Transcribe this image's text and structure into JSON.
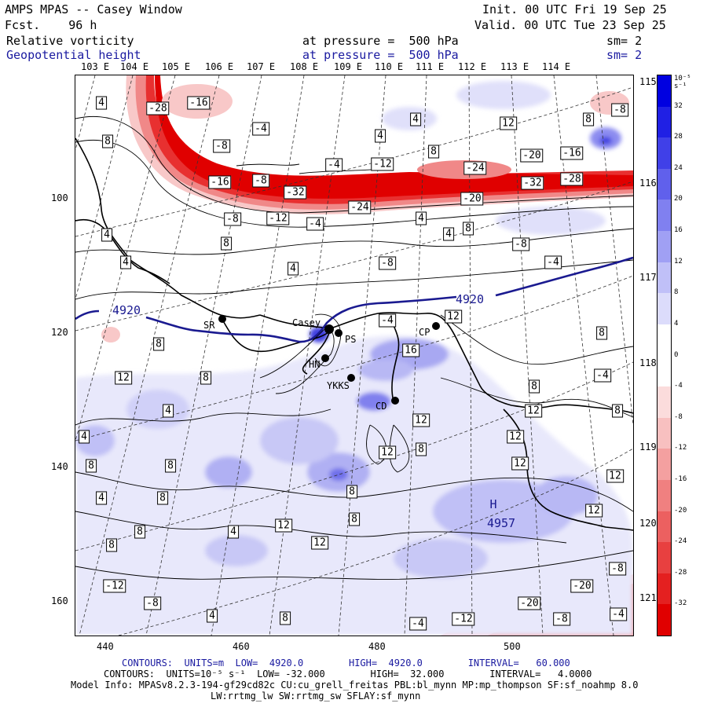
{
  "header": {
    "title": "AMPS MPAS -- Casey Window",
    "forecast": "Fcst.    96 h",
    "init": "Init. 00 UTC Fri 19 Sep 25",
    "valid": "Valid. 00 UTC Tue 23 Sep 25",
    "field1": {
      "name": "Relative vorticity",
      "level": "at pressure =  500 hPa",
      "smooth": "sm= 2"
    },
    "field2": {
      "name": "Geopotential height",
      "level": "at pressure =  500 hPa",
      "smooth": "sm= 2"
    }
  },
  "map": {
    "top_lon_labels": [
      "103 E",
      "104 E",
      "105 E",
      "106 E",
      "107 E",
      "108 E",
      "109 E",
      "110 E",
      "111 E",
      "112 E",
      "113 E",
      "114 E"
    ],
    "right_lon_labels": [
      "115 E",
      "116 E",
      "117 E",
      "118 E",
      "119 E",
      "120 E",
      "121 E"
    ],
    "x_ticks": [
      "440",
      "460",
      "480",
      "500"
    ],
    "y_ticks": [
      "100",
      "120",
      "140",
      "160"
    ],
    "stations": [
      {
        "name": "SR"
      },
      {
        "name": "Casey"
      },
      {
        "name": "PS"
      },
      {
        "name": "HN"
      },
      {
        "name": "YKKS"
      },
      {
        "name": "CD"
      },
      {
        "name": "CP"
      }
    ],
    "height_labels": [
      {
        "text": "4920",
        "x": 160,
        "y": 394
      },
      {
        "text": "4920",
        "x": 597,
        "y": 380
      },
      {
        "text": "4957",
        "x": 637,
        "y": 665
      },
      {
        "text": "H",
        "x": 627,
        "y": 641
      }
    ],
    "vort_labels": [
      {
        "text": "-28",
        "x": 200,
        "y": 137
      },
      {
        "text": "-16",
        "x": 252,
        "y": 130
      },
      {
        "text": "4",
        "x": 128,
        "y": 130
      },
      {
        "text": "-4",
        "x": 331,
        "y": 163
      },
      {
        "text": "8",
        "x": 136,
        "y": 179
      },
      {
        "text": "-8",
        "x": 281,
        "y": 185
      },
      {
        "text": "4",
        "x": 483,
        "y": 172
      },
      {
        "text": "4",
        "x": 528,
        "y": 151
      },
      {
        "text": "12",
        "x": 646,
        "y": 156
      },
      {
        "text": "8",
        "x": 748,
        "y": 151
      },
      {
        "text": "-8",
        "x": 788,
        "y": 139
      },
      {
        "text": "8",
        "x": 551,
        "y": 192
      },
      {
        "text": "-4",
        "x": 424,
        "y": 209
      },
      {
        "text": "-12",
        "x": 486,
        "y": 208
      },
      {
        "text": "-24",
        "x": 604,
        "y": 213
      },
      {
        "text": "-20",
        "x": 676,
        "y": 197
      },
      {
        "text": "-16",
        "x": 727,
        "y": 194
      },
      {
        "text": "-16",
        "x": 279,
        "y": 231
      },
      {
        "text": "-8",
        "x": 331,
        "y": 229
      },
      {
        "text": "-32",
        "x": 375,
        "y": 244
      },
      {
        "text": "-32",
        "x": 677,
        "y": 232
      },
      {
        "text": "-28",
        "x": 727,
        "y": 227
      },
      {
        "text": "-20",
        "x": 600,
        "y": 252
      },
      {
        "text": "-24",
        "x": 457,
        "y": 263
      },
      {
        "text": "4",
        "x": 535,
        "y": 277
      },
      {
        "text": "-8",
        "x": 295,
        "y": 278
      },
      {
        "text": "-12",
        "x": 353,
        "y": 277
      },
      {
        "text": "-4",
        "x": 400,
        "y": 284
      },
      {
        "text": "4",
        "x": 135,
        "y": 298
      },
      {
        "text": "8",
        "x": 287,
        "y": 309
      },
      {
        "text": "4",
        "x": 570,
        "y": 297
      },
      {
        "text": "8",
        "x": 595,
        "y": 290
      },
      {
        "text": "-8",
        "x": 662,
        "y": 310
      },
      {
        "text": "4",
        "x": 159,
        "y": 333
      },
      {
        "text": "4",
        "x": 372,
        "y": 341
      },
      {
        "text": "-8",
        "x": 492,
        "y": 334
      },
      {
        "text": "-4",
        "x": 703,
        "y": 333
      },
      {
        "text": "-4",
        "x": 492,
        "y": 407
      },
      {
        "text": "12",
        "x": 576,
        "y": 402
      },
      {
        "text": "8",
        "x": 201,
        "y": 437
      },
      {
        "text": "8",
        "x": 765,
        "y": 423
      },
      {
        "text": "16",
        "x": 522,
        "y": 445
      },
      {
        "text": "12",
        "x": 156,
        "y": 480
      },
      {
        "text": "8",
        "x": 261,
        "y": 480
      },
      {
        "text": "-4",
        "x": 766,
        "y": 477
      },
      {
        "text": "8",
        "x": 679,
        "y": 491
      },
      {
        "text": "4",
        "x": 213,
        "y": 522
      },
      {
        "text": "12",
        "x": 678,
        "y": 522
      },
      {
        "text": "8",
        "x": 785,
        "y": 522
      },
      {
        "text": "12",
        "x": 535,
        "y": 534
      },
      {
        "text": "4",
        "x": 106,
        "y": 555
      },
      {
        "text": "12",
        "x": 655,
        "y": 555
      },
      {
        "text": "12",
        "x": 492,
        "y": 575
      },
      {
        "text": "8",
        "x": 535,
        "y": 571
      },
      {
        "text": "8",
        "x": 115,
        "y": 592
      },
      {
        "text": "8",
        "x": 216,
        "y": 592
      },
      {
        "text": "12",
        "x": 661,
        "y": 589
      },
      {
        "text": "12",
        "x": 782,
        "y": 605
      },
      {
        "text": "4",
        "x": 128,
        "y": 633
      },
      {
        "text": "8",
        "x": 206,
        "y": 633
      },
      {
        "text": "8",
        "x": 447,
        "y": 625
      },
      {
        "text": "8",
        "x": 450,
        "y": 660
      },
      {
        "text": "12",
        "x": 360,
        "y": 668
      },
      {
        "text": "8",
        "x": 177,
        "y": 676
      },
      {
        "text": "4",
        "x": 296,
        "y": 676
      },
      {
        "text": "12",
        "x": 755,
        "y": 649
      },
      {
        "text": "8",
        "x": 141,
        "y": 693
      },
      {
        "text": "12",
        "x": 406,
        "y": 690
      },
      {
        "text": "-8",
        "x": 785,
        "y": 723
      },
      {
        "text": "-12",
        "x": 145,
        "y": 745
      },
      {
        "text": "-20",
        "x": 740,
        "y": 745
      },
      {
        "text": "-8",
        "x": 193,
        "y": 767
      },
      {
        "text": "-20",
        "x": 673,
        "y": 767
      },
      {
        "text": "4",
        "x": 269,
        "y": 783
      },
      {
        "text": "8",
        "x": 362,
        "y": 786
      },
      {
        "text": "-4",
        "x": 531,
        "y": 793
      },
      {
        "text": "-12",
        "x": 589,
        "y": 787
      },
      {
        "text": "-8",
        "x": 714,
        "y": 787
      },
      {
        "text": "-4",
        "x": 786,
        "y": 781
      }
    ]
  },
  "colorbar": {
    "units": "10⁻⁵ s⁻¹",
    "labels": [
      "32",
      "28",
      "24",
      "20",
      "16",
      "12",
      "8",
      "4",
      "0",
      "-4",
      "-8",
      "-12",
      "-16",
      "-20",
      "-24",
      "-28",
      "-32"
    ],
    "colors": [
      "#0000e0",
      "#2020e4",
      "#4040e8",
      "#6060ec",
      "#8080f0",
      "#a0a0f4",
      "#c0c0f8",
      "#dcdcfb",
      "#ffffff",
      "#ffffff",
      "#fbdcdc",
      "#f8c0c0",
      "#f4a0a0",
      "#f08080",
      "#ec6060",
      "#e84040",
      "#e42020",
      "#e00000"
    ]
  },
  "footer": {
    "line1": "CONTOURS:  UNITS=m  LOW=  4920.0        HIGH=  4920.0        INTERVAL=   60.000",
    "line2": "CONTOURS:  UNITS=10⁻⁵ s⁻¹  LOW= -32.000        HIGH=  32.000        INTERVAL=   4.0000",
    "line3": "Model Info: MPASv8.2.3-194-gf29cd82c CU:cu_grell_freitas PBL:bl_mynn MP:mp_thompson SF:sf_noahmp 8.0",
    "line4": "LW:rrtmg_lw SW:rrtmg_sw SFLAY:sf_mynn"
  }
}
